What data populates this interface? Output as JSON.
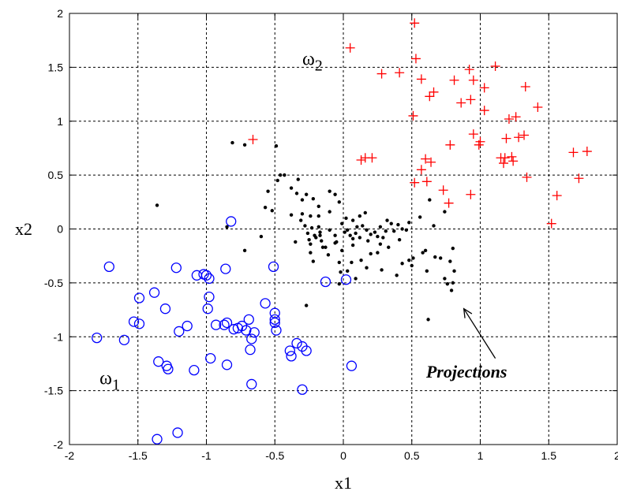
{
  "chart_data": {
    "type": "scatter",
    "title": "",
    "xlabel": "x1",
    "ylabel": "x2",
    "xlim": [
      -2,
      2
    ],
    "ylim": [
      -2,
      2
    ],
    "grid": true,
    "xticks": [
      "-2",
      "-1.5",
      "-1",
      "-0.5",
      "0",
      "0.5",
      "1",
      "1.5",
      "2"
    ],
    "yticks": [
      "-2",
      "-1.5",
      "-1",
      "-0.5",
      "0",
      "0.5",
      "1",
      "1.5",
      "2"
    ],
    "labels": {
      "omega1": {
        "base": "ω",
        "sub": "1",
        "x": -1.78,
        "y": -1.44
      },
      "omega2": {
        "base": "ω",
        "sub": "2",
        "x": -0.3,
        "y": 1.52
      }
    },
    "annotation": {
      "text": "Projections",
      "text_at": [
        0.9,
        -1.38
      ],
      "arrow_from": [
        1.11,
        -1.2
      ],
      "arrow_to": [
        0.88,
        -0.74
      ]
    },
    "series": [
      {
        "marker": "circle",
        "color": "#0000ff",
        "points": [
          [
            -1.8,
            -1.01
          ],
          [
            -1.71,
            -0.35
          ],
          [
            -1.6,
            -1.03
          ],
          [
            -1.53,
            -0.86
          ],
          [
            -1.49,
            -0.64
          ],
          [
            -1.49,
            -0.88
          ],
          [
            -1.38,
            -0.59
          ],
          [
            -1.35,
            -1.23
          ],
          [
            -1.29,
            -1.27
          ],
          [
            -1.28,
            -1.3
          ],
          [
            -1.3,
            -0.74
          ],
          [
            -1.22,
            -0.36
          ],
          [
            -1.2,
            -0.95
          ],
          [
            -1.14,
            -0.9
          ],
          [
            -1.09,
            -1.31
          ],
          [
            -1.07,
            -0.43
          ],
          [
            -1.02,
            -0.42
          ],
          [
            -1.0,
            -0.43
          ],
          [
            -0.98,
            -0.46
          ],
          [
            -0.98,
            -0.63
          ],
          [
            -0.99,
            -0.74
          ],
          [
            -0.97,
            -1.2
          ],
          [
            -0.93,
            -0.89
          ],
          [
            -0.87,
            -0.89
          ],
          [
            -0.86,
            -0.37
          ],
          [
            -0.85,
            -0.87
          ],
          [
            -0.85,
            -1.26
          ],
          [
            -0.82,
            0.07
          ],
          [
            -0.8,
            -0.93
          ],
          [
            -0.77,
            -0.92
          ],
          [
            -0.74,
            -0.9
          ],
          [
            -0.71,
            -0.94
          ],
          [
            -0.69,
            -0.84
          ],
          [
            -0.67,
            -1.02
          ],
          [
            -0.68,
            -1.12
          ],
          [
            -0.67,
            -1.44
          ],
          [
            -0.65,
            -0.96
          ],
          [
            -0.57,
            -0.69
          ],
          [
            -0.51,
            -0.35
          ],
          [
            -0.5,
            -0.78
          ],
          [
            -0.5,
            -0.84
          ],
          [
            -0.5,
            -0.87
          ],
          [
            -0.49,
            -0.94
          ],
          [
            -0.39,
            -1.13
          ],
          [
            -0.38,
            -1.18
          ],
          [
            -0.34,
            -1.06
          ],
          [
            -0.3,
            -1.09
          ],
          [
            -0.27,
            -1.13
          ],
          [
            -0.3,
            -1.49
          ],
          [
            -0.13,
            -0.49
          ],
          [
            0.02,
            -0.47
          ],
          [
            0.06,
            -1.27
          ],
          [
            -1.36,
            -1.95
          ],
          [
            -1.21,
            -1.89
          ]
        ]
      },
      {
        "marker": "plus",
        "color": "#ff0000",
        "points": [
          [
            0.05,
            1.68
          ],
          [
            0.52,
            1.91
          ],
          [
            0.53,
            1.58
          ],
          [
            0.28,
            1.44
          ],
          [
            0.41,
            1.45
          ],
          [
            0.57,
            1.39
          ],
          [
            0.63,
            1.23
          ],
          [
            0.66,
            1.27
          ],
          [
            0.81,
            1.38
          ],
          [
            0.86,
            1.17
          ],
          [
            0.92,
            1.48
          ],
          [
            0.93,
            1.2
          ],
          [
            0.95,
            1.38
          ],
          [
            1.03,
            1.31
          ],
          [
            1.11,
            1.51
          ],
          [
            1.33,
            1.32
          ],
          [
            1.42,
            1.13
          ],
          [
            1.26,
            1.04
          ],
          [
            1.21,
            1.02
          ],
          [
            1.03,
            1.1
          ],
          [
            0.95,
            0.88
          ],
          [
            0.99,
            0.78
          ],
          [
            1.0,
            0.81
          ],
          [
            0.78,
            0.78
          ],
          [
            0.64,
            0.62
          ],
          [
            0.61,
            0.44
          ],
          [
            0.57,
            0.55
          ],
          [
            0.52,
            0.43
          ],
          [
            0.51,
            1.05
          ],
          [
            0.73,
            0.36
          ],
          [
            0.77,
            0.24
          ],
          [
            0.93,
            0.32
          ],
          [
            1.17,
            0.61
          ],
          [
            1.19,
            0.84
          ],
          [
            1.18,
            0.66
          ],
          [
            1.23,
            0.67
          ],
          [
            1.24,
            0.63
          ],
          [
            1.28,
            0.85
          ],
          [
            1.32,
            0.87
          ],
          [
            1.34,
            0.48
          ],
          [
            1.56,
            0.31
          ],
          [
            1.68,
            0.71
          ],
          [
            1.72,
            0.47
          ],
          [
            1.78,
            0.72
          ],
          [
            1.52,
            0.05
          ],
          [
            0.13,
            0.64
          ],
          [
            0.16,
            0.66
          ],
          [
            0.21,
            0.66
          ],
          [
            -0.66,
            0.83
          ],
          [
            0.6,
            0.65
          ],
          [
            1.15,
            0.66
          ]
        ]
      },
      {
        "marker": "dot",
        "color": "#000000",
        "points": [
          [
            -1.36,
            0.22
          ],
          [
            -0.81,
            0.8
          ],
          [
            -0.72,
            0.78
          ],
          [
            -0.49,
            0.77
          ],
          [
            -0.85,
            0.02
          ],
          [
            -0.72,
            -0.2
          ],
          [
            -0.6,
            -0.07
          ],
          [
            -0.57,
            0.2
          ],
          [
            -0.55,
            0.35
          ],
          [
            -0.52,
            0.17
          ],
          [
            -0.48,
            0.45
          ],
          [
            -0.46,
            0.5
          ],
          [
            -0.43,
            0.5
          ],
          [
            -0.38,
            0.38
          ],
          [
            -0.33,
            0.46
          ],
          [
            -0.34,
            0.33
          ],
          [
            -0.38,
            0.13
          ],
          [
            -0.3,
            0.27
          ],
          [
            -0.3,
            0.14
          ],
          [
            -0.27,
            0.32
          ],
          [
            -0.22,
            0.28
          ],
          [
            -0.18,
            0.21
          ],
          [
            -0.24,
            0.12
          ],
          [
            -0.18,
            0.12
          ],
          [
            -0.1,
            0.35
          ],
          [
            -0.06,
            0.32
          ],
          [
            -0.03,
            0.25
          ],
          [
            -0.1,
            0.16
          ],
          [
            0.02,
            0.1
          ],
          [
            0.07,
            0.08
          ],
          [
            0.12,
            0.12
          ],
          [
            0.16,
            0.15
          ],
          [
            -0.28,
            0.03
          ],
          [
            -0.23,
            0.01
          ],
          [
            -0.26,
            -0.04
          ],
          [
            -0.21,
            -0.06
          ],
          [
            -0.25,
            -0.1
          ],
          [
            -0.24,
            -0.14
          ],
          [
            -0.24,
            -0.22
          ],
          [
            -0.22,
            -0.3
          ],
          [
            -0.2,
            -0.08
          ],
          [
            -0.17,
            -0.03
          ],
          [
            -0.16,
            -0.11
          ],
          [
            -0.13,
            -0.17
          ],
          [
            -0.11,
            -0.24
          ],
          [
            -0.1,
            -0.01
          ],
          [
            -0.06,
            -0.06
          ],
          [
            -0.05,
            -0.12
          ],
          [
            -0.01,
            -0.2
          ],
          [
            -0.03,
            -0.31
          ],
          [
            -0.02,
            -0.4
          ],
          [
            0.01,
            -0.03
          ],
          [
            0.03,
            -0.01
          ],
          [
            0.05,
            -0.06
          ],
          [
            0.07,
            -0.09
          ],
          [
            0.07,
            -0.15
          ],
          [
            0.09,
            -0.04
          ],
          [
            0.12,
            -0.08
          ],
          [
            0.14,
            0.03
          ],
          [
            0.17,
            -0.01
          ],
          [
            0.18,
            -0.11
          ],
          [
            0.2,
            -0.05
          ],
          [
            0.23,
            -0.03
          ],
          [
            0.25,
            -0.07
          ],
          [
            0.27,
            0.02
          ],
          [
            0.29,
            -0.08
          ],
          [
            0.31,
            -0.02
          ],
          [
            0.32,
            0.08
          ],
          [
            0.35,
            0.05
          ],
          [
            0.37,
            -0.02
          ],
          [
            0.4,
            0.04
          ],
          [
            0.43,
            0.0
          ],
          [
            0.46,
            -0.01
          ],
          [
            0.48,
            0.06
          ],
          [
            0.41,
            -0.1
          ],
          [
            0.33,
            -0.17
          ],
          [
            0.25,
            -0.22
          ],
          [
            0.2,
            -0.23
          ],
          [
            0.13,
            -0.29
          ],
          [
            0.06,
            -0.31
          ],
          [
            0.03,
            -0.39
          ],
          [
            0.09,
            -0.46
          ],
          [
            0.17,
            -0.36
          ],
          [
            0.28,
            -0.38
          ],
          [
            0.39,
            -0.43
          ],
          [
            0.43,
            -0.32
          ],
          [
            0.48,
            -0.29
          ],
          [
            0.51,
            -0.27
          ],
          [
            0.5,
            -0.34
          ],
          [
            0.58,
            -0.22
          ],
          [
            0.6,
            -0.2
          ],
          [
            0.61,
            -0.39
          ],
          [
            0.67,
            -0.26
          ],
          [
            0.71,
            -0.27
          ],
          [
            0.74,
            -0.46
          ],
          [
            0.78,
            -0.3
          ],
          [
            0.81,
            -0.39
          ],
          [
            0.8,
            -0.5
          ],
          [
            0.79,
            -0.57
          ],
          [
            0.76,
            -0.51
          ],
          [
            0.8,
            -0.18
          ],
          [
            0.62,
            -0.84
          ],
          [
            -0.27,
            -0.71
          ],
          [
            -0.03,
            -0.51
          ],
          [
            -0.17,
            -0.06
          ],
          [
            -0.15,
            -0.17
          ],
          [
            -0.06,
            -0.13
          ],
          [
            -0.35,
            -0.12
          ],
          [
            -0.31,
            0.08
          ],
          [
            -0.18,
            0.02
          ],
          [
            0.1,
            0.02
          ],
          [
            0.27,
            -0.14
          ],
          [
            0.56,
            0.11
          ],
          [
            0.66,
            0.03
          ],
          [
            0.63,
            0.27
          ],
          [
            0.74,
            0.16
          ],
          [
            -0.01,
            0.05
          ]
        ]
      }
    ]
  }
}
